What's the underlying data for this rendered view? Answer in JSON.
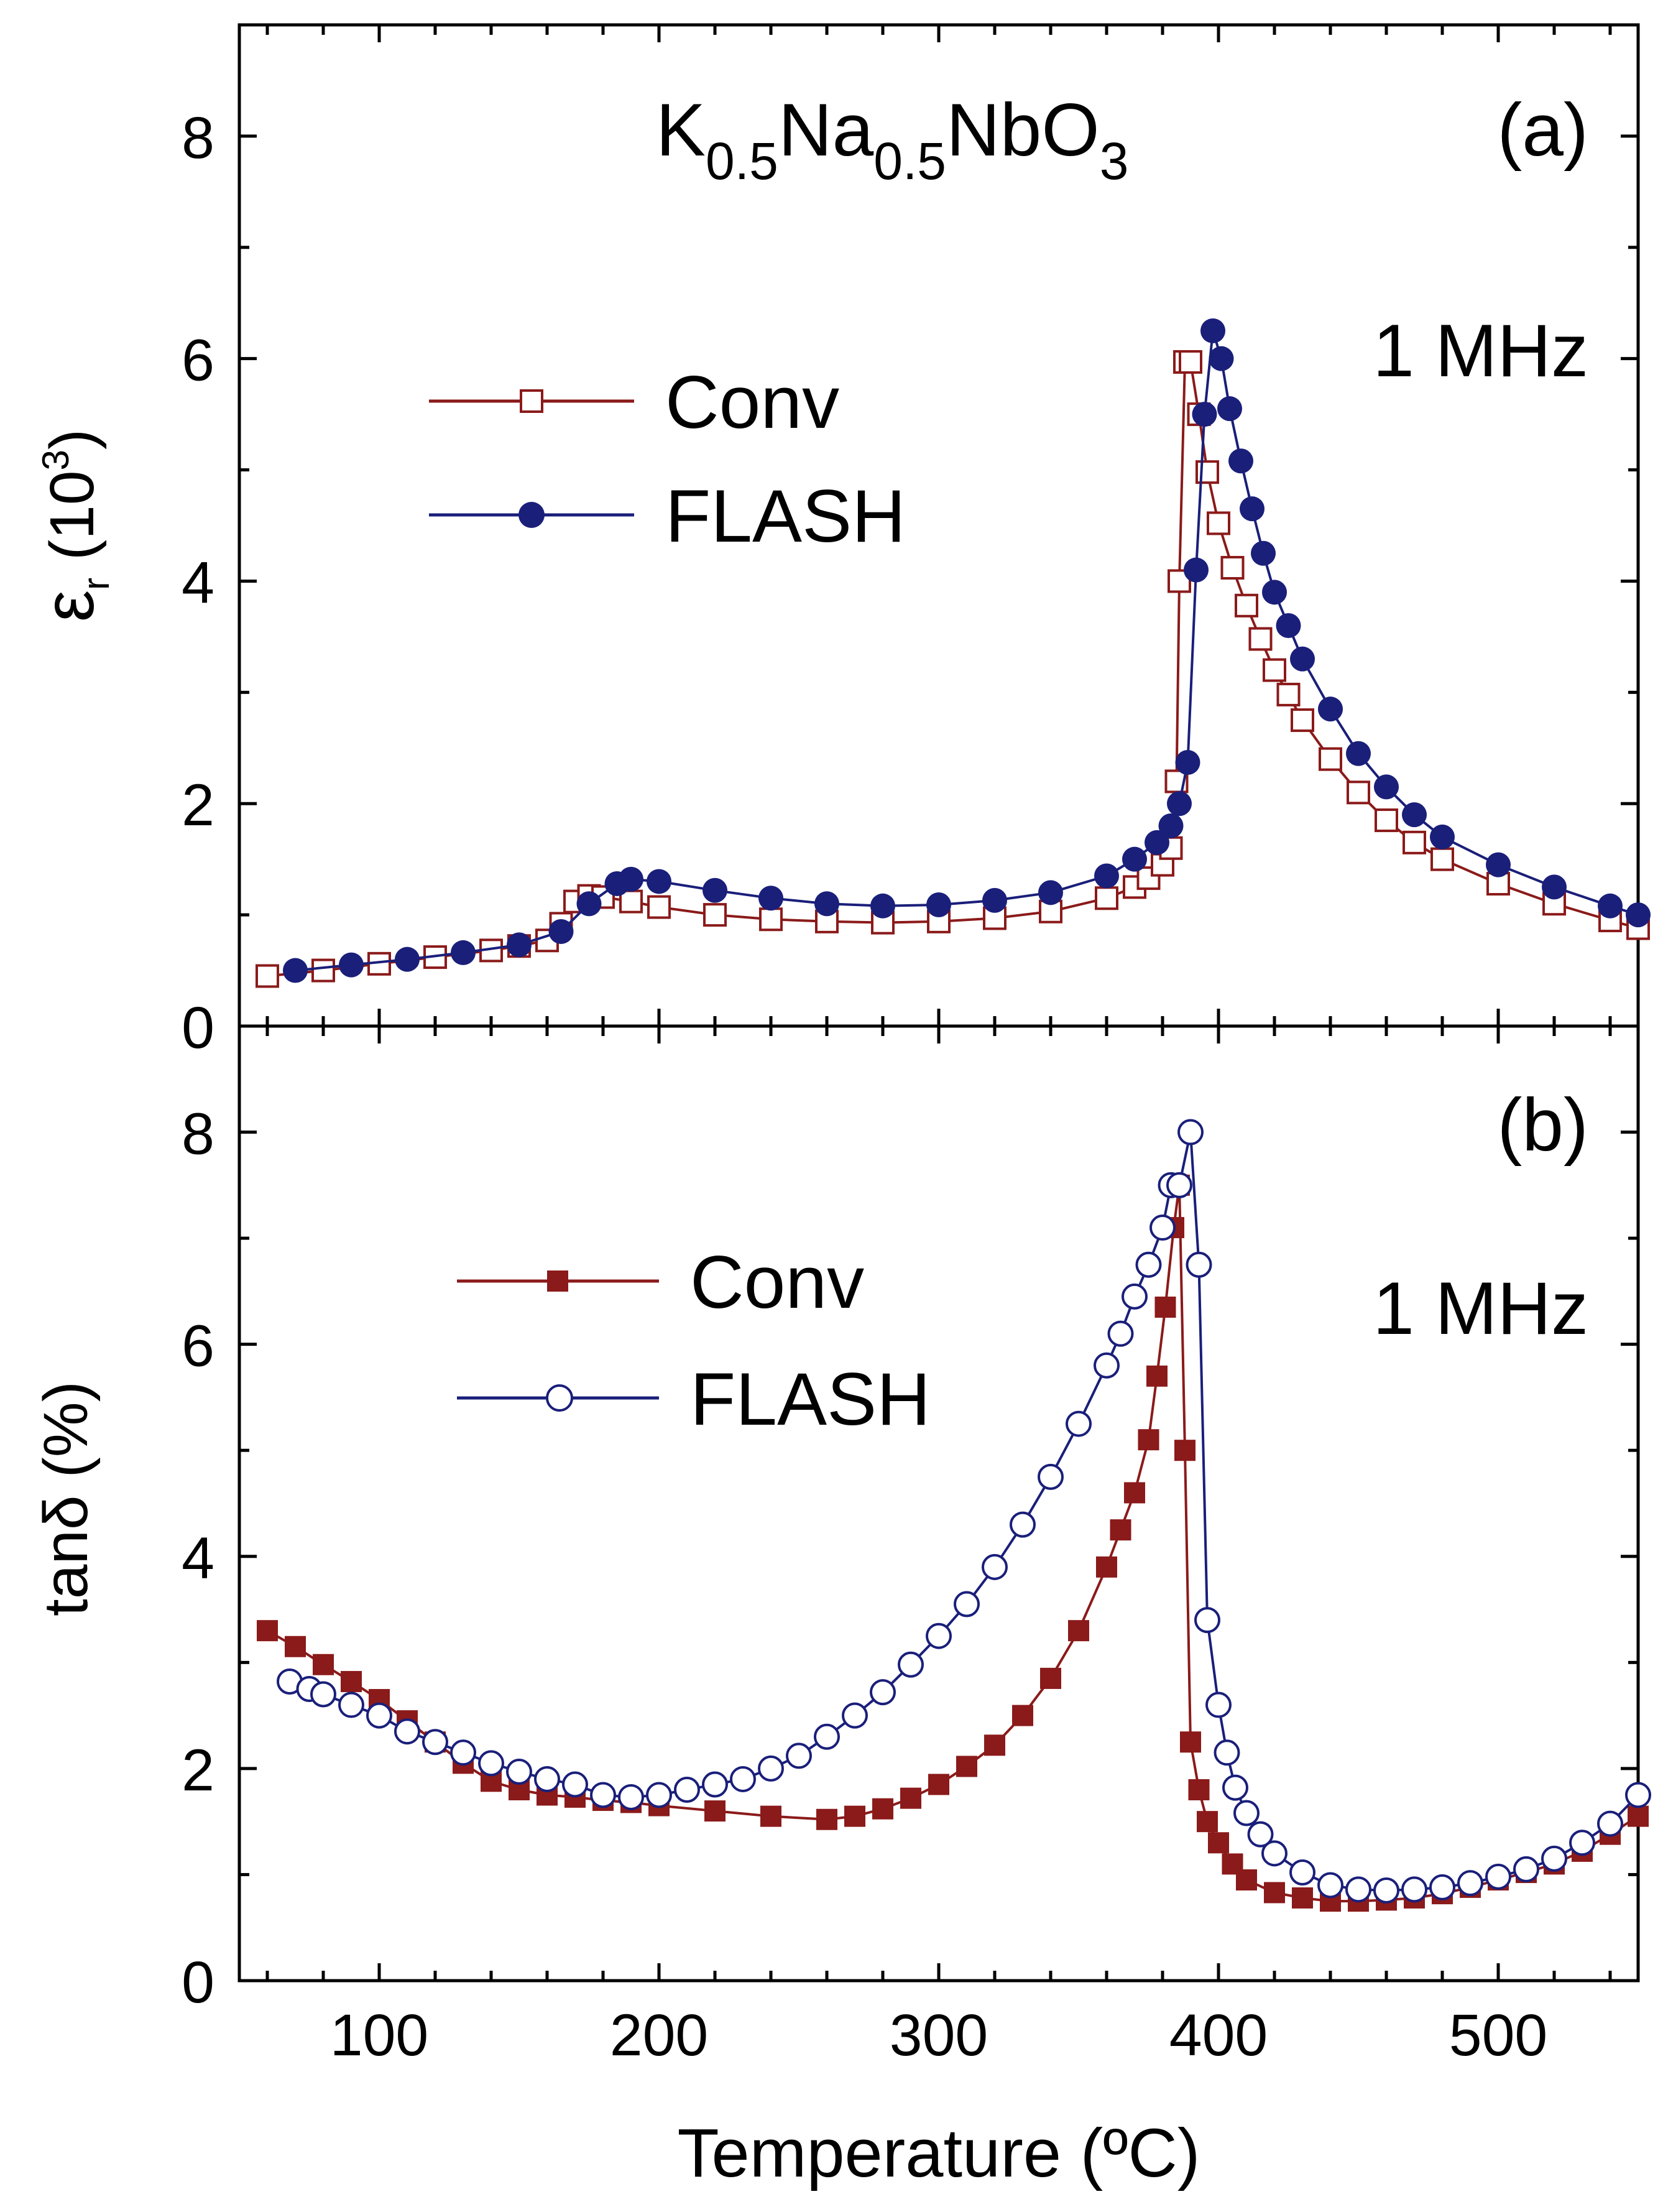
{
  "colors": {
    "conv": "#8B1A1A",
    "flash": "#1A1F7A",
    "axis": "#000000"
  },
  "chart_data": [
    {
      "panel": "(a)",
      "type": "line",
      "title_parts": [
        "K",
        "0.5",
        "Na",
        "0.5",
        "NbO",
        "3"
      ],
      "frequency_label": "1 MHz",
      "ylabel_symbol": "ε",
      "ylabel_sub": "r",
      "ylabel_unit_open": " (10",
      "ylabel_unit_sup": "3",
      "ylabel_unit_close": ")",
      "xlim": [
        50,
        550
      ],
      "ylim": [
        0,
        9
      ],
      "x_ticks": [
        100,
        200,
        300,
        400,
        500
      ],
      "y_ticks": [
        0,
        2,
        4,
        6,
        8
      ],
      "legend": [
        "Conv",
        "FLASH"
      ],
      "legend_position": "upper-left",
      "series": [
        {
          "name": "Conv",
          "marker": "open-square",
          "x": [
            60,
            80,
            100,
            120,
            140,
            150,
            160,
            165,
            170,
            175,
            180,
            190,
            200,
            220,
            240,
            260,
            280,
            300,
            320,
            340,
            360,
            370,
            375,
            380,
            383,
            385,
            386,
            388,
            390,
            393,
            396,
            400,
            405,
            410,
            415,
            420,
            425,
            430,
            440,
            450,
            460,
            470,
            480,
            500,
            520,
            540,
            550
          ],
          "y": [
            0.45,
            0.5,
            0.56,
            0.62,
            0.68,
            0.72,
            0.77,
            0.92,
            1.12,
            1.17,
            1.16,
            1.12,
            1.07,
            1.0,
            0.96,
            0.94,
            0.93,
            0.94,
            0.97,
            1.03,
            1.15,
            1.25,
            1.33,
            1.45,
            1.6,
            2.2,
            4.0,
            5.97,
            5.97,
            5.5,
            4.98,
            4.52,
            4.12,
            3.78,
            3.48,
            3.2,
            2.98,
            2.75,
            2.4,
            2.1,
            1.85,
            1.65,
            1.5,
            1.28,
            1.1,
            0.95,
            0.88
          ]
        },
        {
          "name": "FLASH",
          "marker": "filled-circle",
          "x": [
            70,
            90,
            110,
            130,
            150,
            165,
            175,
            185,
            190,
            200,
            220,
            240,
            260,
            280,
            300,
            320,
            340,
            360,
            370,
            378,
            383,
            386,
            389,
            392,
            395,
            398,
            401,
            404,
            408,
            412,
            416,
            420,
            425,
            430,
            440,
            450,
            460,
            470,
            480,
            500,
            520,
            540,
            550
          ],
          "y": [
            0.5,
            0.55,
            0.6,
            0.66,
            0.73,
            0.85,
            1.1,
            1.28,
            1.32,
            1.3,
            1.22,
            1.15,
            1.1,
            1.08,
            1.09,
            1.13,
            1.2,
            1.35,
            1.5,
            1.65,
            1.8,
            2.0,
            2.37,
            4.1,
            5.5,
            6.25,
            6.0,
            5.55,
            5.08,
            4.65,
            4.25,
            3.9,
            3.6,
            3.3,
            2.85,
            2.45,
            2.15,
            1.9,
            1.7,
            1.45,
            1.25,
            1.08,
            1.0
          ]
        }
      ]
    },
    {
      "panel": "(b)",
      "type": "line",
      "frequency_label": "1 MHz",
      "ylabel": "tanδ (%)",
      "xlabel": "Temperature (ºC)",
      "xlim": [
        50,
        550
      ],
      "ylim": [
        0,
        9
      ],
      "x_ticks": [
        100,
        200,
        300,
        400,
        500
      ],
      "y_ticks": [
        0,
        2,
        4,
        6,
        8
      ],
      "legend": [
        "Conv",
        "FLASH"
      ],
      "legend_position": "upper-left",
      "series": [
        {
          "name": "Conv",
          "marker": "filled-square",
          "x": [
            60,
            70,
            80,
            90,
            100,
            110,
            120,
            130,
            140,
            150,
            160,
            170,
            180,
            190,
            200,
            220,
            240,
            260,
            270,
            280,
            290,
            300,
            310,
            320,
            330,
            340,
            350,
            360,
            365,
            370,
            375,
            378,
            381,
            384,
            386,
            388,
            390,
            393,
            396,
            400,
            405,
            410,
            420,
            430,
            440,
            450,
            460,
            470,
            480,
            490,
            500,
            510,
            520,
            530,
            540,
            550
          ],
          "y": [
            3.3,
            3.15,
            2.98,
            2.82,
            2.65,
            2.45,
            2.25,
            2.05,
            1.88,
            1.8,
            1.75,
            1.73,
            1.7,
            1.68,
            1.65,
            1.6,
            1.55,
            1.52,
            1.55,
            1.62,
            1.72,
            1.85,
            2.02,
            2.22,
            2.5,
            2.85,
            3.3,
            3.9,
            4.25,
            4.6,
            5.1,
            5.7,
            6.35,
            7.1,
            7.5,
            5.0,
            2.25,
            1.8,
            1.5,
            1.3,
            1.1,
            0.95,
            0.83,
            0.78,
            0.75,
            0.75,
            0.76,
            0.78,
            0.82,
            0.88,
            0.95,
            1.02,
            1.1,
            1.22,
            1.38,
            1.55
          ]
        },
        {
          "name": "FLASH",
          "marker": "open-circle",
          "x": [
            68,
            75,
            80,
            90,
            100,
            110,
            120,
            130,
            140,
            150,
            160,
            170,
            180,
            190,
            200,
            210,
            220,
            230,
            240,
            250,
            260,
            270,
            280,
            290,
            300,
            310,
            320,
            330,
            340,
            350,
            360,
            365,
            370,
            375,
            380,
            383,
            386,
            390,
            393,
            396,
            400,
            403,
            406,
            410,
            415,
            420,
            430,
            440,
            450,
            460,
            470,
            480,
            490,
            500,
            510,
            520,
            530,
            540,
            550
          ],
          "y": [
            2.82,
            2.75,
            2.7,
            2.6,
            2.5,
            2.35,
            2.25,
            2.15,
            2.05,
            1.97,
            1.9,
            1.85,
            1.75,
            1.73,
            1.75,
            1.8,
            1.85,
            1.9,
            2.0,
            2.12,
            2.3,
            2.5,
            2.72,
            2.98,
            3.25,
            3.55,
            3.9,
            4.3,
            4.75,
            5.25,
            5.8,
            6.1,
            6.45,
            6.75,
            7.1,
            7.5,
            7.5,
            8.0,
            6.75,
            3.4,
            2.6,
            2.15,
            1.82,
            1.58,
            1.38,
            1.2,
            1.02,
            0.9,
            0.86,
            0.85,
            0.86,
            0.88,
            0.92,
            0.98,
            1.05,
            1.15,
            1.3,
            1.48,
            1.75
          ]
        }
      ]
    }
  ]
}
